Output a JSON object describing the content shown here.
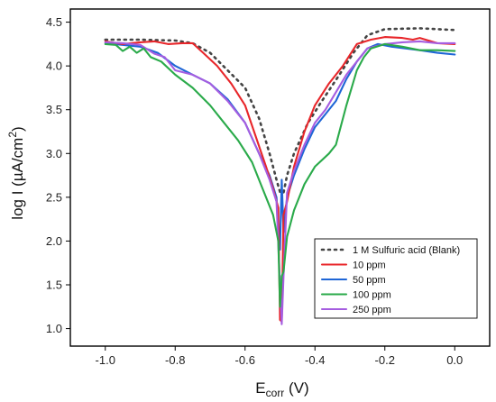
{
  "chart_data": {
    "type": "line",
    "xlabel_main": "E",
    "xlabel_sub": "corr",
    "xlabel_tail": " (V)",
    "ylabel_main": "log I (µA/cm",
    "ylabel_sup": "2",
    "ylabel_tail": ")",
    "xlim": [
      -1.1,
      0.1
    ],
    "ylim": [
      0.8,
      4.65
    ],
    "xticks": [
      -1.0,
      -0.8,
      -0.6,
      -0.4,
      -0.2,
      0.0
    ],
    "xtick_labels": [
      "-1.0",
      "-0.8",
      "-0.6",
      "-0.4",
      "-0.2",
      "0.0"
    ],
    "yticks": [
      1.0,
      1.5,
      2.0,
      2.5,
      3.0,
      3.5,
      4.0,
      4.5
    ],
    "ytick_labels": [
      "1.0",
      "1.5",
      "2.0",
      "2.5",
      "3.0",
      "3.5",
      "4.0",
      "4.5"
    ],
    "grid": false,
    "legend_position": "bottom-right",
    "series": [
      {
        "name": "1 M Sulfuric acid (Blank)",
        "color": "#444444",
        "dash": true,
        "points": [
          [
            -1.0,
            4.3
          ],
          [
            -0.9,
            4.3
          ],
          [
            -0.8,
            4.29
          ],
          [
            -0.75,
            4.26
          ],
          [
            -0.7,
            4.15
          ],
          [
            -0.65,
            3.95
          ],
          [
            -0.6,
            3.75
          ],
          [
            -0.56,
            3.4
          ],
          [
            -0.53,
            3.0
          ],
          [
            -0.51,
            2.7
          ],
          [
            -0.5,
            2.56
          ],
          [
            -0.49,
            2.55
          ],
          [
            -0.48,
            2.75
          ],
          [
            -0.46,
            3.0
          ],
          [
            -0.42,
            3.35
          ],
          [
            -0.38,
            3.6
          ],
          [
            -0.33,
            3.9
          ],
          [
            -0.29,
            4.15
          ],
          [
            -0.25,
            4.35
          ],
          [
            -0.2,
            4.42
          ],
          [
            -0.1,
            4.43
          ],
          [
            0.0,
            4.41
          ]
        ]
      },
      {
        "name": "10 ppm",
        "color": "#e8262a",
        "dash": false,
        "points": [
          [
            -1.0,
            4.28
          ],
          [
            -0.95,
            4.25
          ],
          [
            -0.9,
            4.27
          ],
          [
            -0.86,
            4.28
          ],
          [
            -0.82,
            4.25
          ],
          [
            -0.78,
            4.26
          ],
          [
            -0.75,
            4.26
          ],
          [
            -0.72,
            4.15
          ],
          [
            -0.68,
            4.0
          ],
          [
            -0.64,
            3.8
          ],
          [
            -0.6,
            3.55
          ],
          [
            -0.57,
            3.2
          ],
          [
            -0.54,
            2.85
          ],
          [
            -0.52,
            2.6
          ],
          [
            -0.505,
            2.38
          ],
          [
            -0.5,
            1.1
          ],
          [
            -0.495,
            1.08
          ],
          [
            -0.49,
            2.3
          ],
          [
            -0.48,
            2.45
          ],
          [
            -0.46,
            2.85
          ],
          [
            -0.43,
            3.25
          ],
          [
            -0.4,
            3.55
          ],
          [
            -0.36,
            3.8
          ],
          [
            -0.32,
            4.0
          ],
          [
            -0.28,
            4.25
          ],
          [
            -0.24,
            4.3
          ],
          [
            -0.2,
            4.33
          ],
          [
            -0.15,
            4.32
          ],
          [
            -0.12,
            4.3
          ],
          [
            -0.1,
            4.32
          ],
          [
            -0.05,
            4.26
          ],
          [
            0.0,
            4.25
          ]
        ]
      },
      {
        "name": "50 ppm",
        "color": "#1f66d6",
        "dash": false,
        "points": [
          [
            -1.0,
            4.26
          ],
          [
            -0.95,
            4.24
          ],
          [
            -0.9,
            4.22
          ],
          [
            -0.85,
            4.15
          ],
          [
            -0.8,
            4.0
          ],
          [
            -0.75,
            3.9
          ],
          [
            -0.7,
            3.8
          ],
          [
            -0.65,
            3.62
          ],
          [
            -0.6,
            3.35
          ],
          [
            -0.56,
            3.0
          ],
          [
            -0.53,
            2.75
          ],
          [
            -0.51,
            2.5
          ],
          [
            -0.5,
            1.9
          ],
          [
            -0.495,
            2.7
          ],
          [
            -0.49,
            2.1
          ],
          [
            -0.48,
            2.5
          ],
          [
            -0.46,
            2.75
          ],
          [
            -0.43,
            3.05
          ],
          [
            -0.4,
            3.3
          ],
          [
            -0.37,
            3.45
          ],
          [
            -0.34,
            3.6
          ],
          [
            -0.31,
            3.85
          ],
          [
            -0.28,
            4.05
          ],
          [
            -0.25,
            4.2
          ],
          [
            -0.22,
            4.25
          ],
          [
            -0.18,
            4.22
          ],
          [
            -0.1,
            4.18
          ],
          [
            -0.05,
            4.15
          ],
          [
            0.0,
            4.13
          ]
        ]
      },
      {
        "name": "100 ppm",
        "color": "#2aaa4a",
        "dash": false,
        "points": [
          [
            -1.0,
            4.25
          ],
          [
            -0.97,
            4.24
          ],
          [
            -0.95,
            4.17
          ],
          [
            -0.93,
            4.22
          ],
          [
            -0.91,
            4.15
          ],
          [
            -0.89,
            4.2
          ],
          [
            -0.87,
            4.1
          ],
          [
            -0.84,
            4.05
          ],
          [
            -0.8,
            3.9
          ],
          [
            -0.75,
            3.75
          ],
          [
            -0.7,
            3.55
          ],
          [
            -0.66,
            3.35
          ],
          [
            -0.62,
            3.15
          ],
          [
            -0.58,
            2.9
          ],
          [
            -0.55,
            2.6
          ],
          [
            -0.52,
            2.3
          ],
          [
            -0.505,
            2.0
          ],
          [
            -0.5,
            1.25
          ],
          [
            -0.495,
            1.6
          ],
          [
            -0.49,
            1.65
          ],
          [
            -0.48,
            2.05
          ],
          [
            -0.46,
            2.35
          ],
          [
            -0.43,
            2.65
          ],
          [
            -0.4,
            2.85
          ],
          [
            -0.36,
            3.0
          ],
          [
            -0.34,
            3.1
          ],
          [
            -0.31,
            3.55
          ],
          [
            -0.28,
            3.95
          ],
          [
            -0.26,
            4.1
          ],
          [
            -0.24,
            4.2
          ],
          [
            -0.2,
            4.25
          ],
          [
            -0.15,
            4.22
          ],
          [
            -0.1,
            4.18
          ],
          [
            -0.05,
            4.18
          ],
          [
            0.0,
            4.17
          ]
        ]
      },
      {
        "name": "250 ppm",
        "color": "#a55de0",
        "dash": false,
        "points": [
          [
            -1.0,
            4.27
          ],
          [
            -0.95,
            4.26
          ],
          [
            -0.9,
            4.24
          ],
          [
            -0.86,
            4.14
          ],
          [
            -0.83,
            4.1
          ],
          [
            -0.8,
            3.95
          ],
          [
            -0.75,
            3.9
          ],
          [
            -0.7,
            3.8
          ],
          [
            -0.65,
            3.6
          ],
          [
            -0.6,
            3.35
          ],
          [
            -0.56,
            3.0
          ],
          [
            -0.53,
            2.7
          ],
          [
            -0.51,
            2.45
          ],
          [
            -0.5,
            1.5
          ],
          [
            -0.495,
            1.05
          ],
          [
            -0.49,
            1.6
          ],
          [
            -0.48,
            2.55
          ],
          [
            -0.46,
            2.8
          ],
          [
            -0.43,
            3.1
          ],
          [
            -0.4,
            3.35
          ],
          [
            -0.37,
            3.5
          ],
          [
            -0.34,
            3.7
          ],
          [
            -0.31,
            3.9
          ],
          [
            -0.28,
            4.05
          ],
          [
            -0.25,
            4.2
          ],
          [
            -0.2,
            4.25
          ],
          [
            -0.15,
            4.27
          ],
          [
            -0.1,
            4.28
          ],
          [
            -0.05,
            4.26
          ],
          [
            0.0,
            4.26
          ]
        ]
      }
    ]
  }
}
